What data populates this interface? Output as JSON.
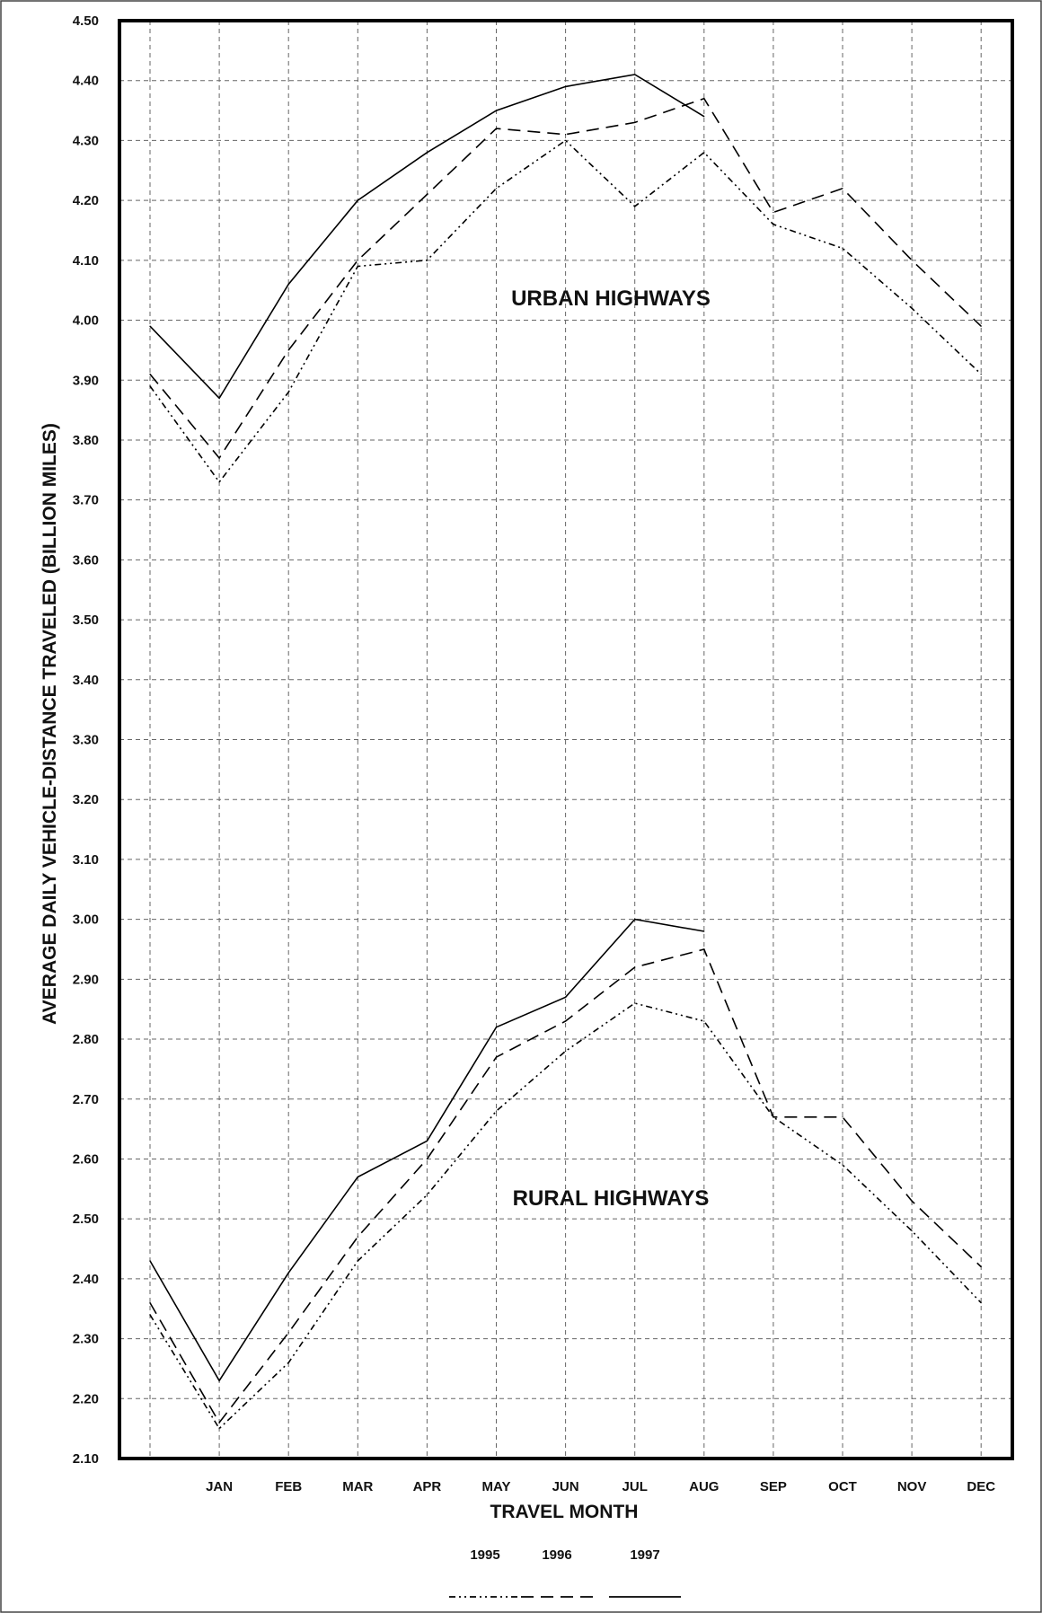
{
  "chart_data": {
    "type": "line",
    "ylabel": "AVERAGE DAILY VEHICLE-DISTANCE TRAVELED (BILLION MILES)",
    "xlabel": "TRAVEL MONTH",
    "ylim": [
      2.1,
      4.5
    ],
    "yticks": [
      "4.50",
      "4.40",
      "4.30",
      "4.20",
      "4.10",
      "4.00",
      "3.90",
      "3.80",
      "3.70",
      "3.60",
      "3.50",
      "3.40",
      "3.30",
      "3.20",
      "3.10",
      "3.00",
      "2.90",
      "2.80",
      "2.70",
      "2.60",
      "2.50",
      "2.40",
      "2.30",
      "2.20",
      "2.10"
    ],
    "categories": [
      "",
      "JAN",
      "FEB",
      "MAR",
      "APR",
      "MAY",
      "JUN",
      "JUL",
      "AUG",
      "SEP",
      "OCT",
      "NOV",
      "DEC"
    ],
    "grid": true,
    "legend_position": "bottom",
    "annotations": [
      "URBAN HIGHWAYS",
      "RURAL HIGHWAYS"
    ],
    "series": [
      {
        "name": "1995",
        "style": "dash-dot",
        "group": "urban",
        "values": [
          3.89,
          3.73,
          3.88,
          4.09,
          4.1,
          4.22,
          4.3,
          4.19,
          4.28,
          4.16,
          4.12,
          4.02,
          3.91
        ]
      },
      {
        "name": "1996",
        "style": "dashed",
        "group": "urban",
        "values": [
          3.91,
          3.77,
          3.95,
          4.1,
          4.21,
          4.32,
          4.31,
          4.33,
          4.37,
          4.18,
          4.22,
          4.1,
          3.99
        ]
      },
      {
        "name": "1997",
        "style": "solid",
        "group": "urban",
        "values": [
          3.99,
          3.87,
          4.06,
          4.2,
          4.28,
          4.35,
          4.39,
          4.41,
          4.34,
          null,
          null,
          null,
          null
        ]
      },
      {
        "name": "1995",
        "style": "dash-dot",
        "group": "rural",
        "values": [
          2.34,
          2.15,
          2.26,
          2.43,
          2.54,
          2.68,
          2.78,
          2.86,
          2.83,
          2.67,
          2.59,
          2.48,
          2.36
        ]
      },
      {
        "name": "1996",
        "style": "dashed",
        "group": "rural",
        "values": [
          2.36,
          2.16,
          2.31,
          2.47,
          2.6,
          2.77,
          2.83,
          2.92,
          2.95,
          2.67,
          2.67,
          2.53,
          2.42
        ]
      },
      {
        "name": "1997",
        "style": "solid",
        "group": "rural",
        "values": [
          2.43,
          2.23,
          2.41,
          2.57,
          2.63,
          2.82,
          2.87,
          3.0,
          2.98,
          null,
          null,
          null,
          null
        ]
      }
    ],
    "legend": [
      {
        "label": "1995",
        "style": "dash-dot"
      },
      {
        "label": "1996",
        "style": "dashed"
      },
      {
        "label": "1997",
        "style": "solid"
      }
    ]
  }
}
